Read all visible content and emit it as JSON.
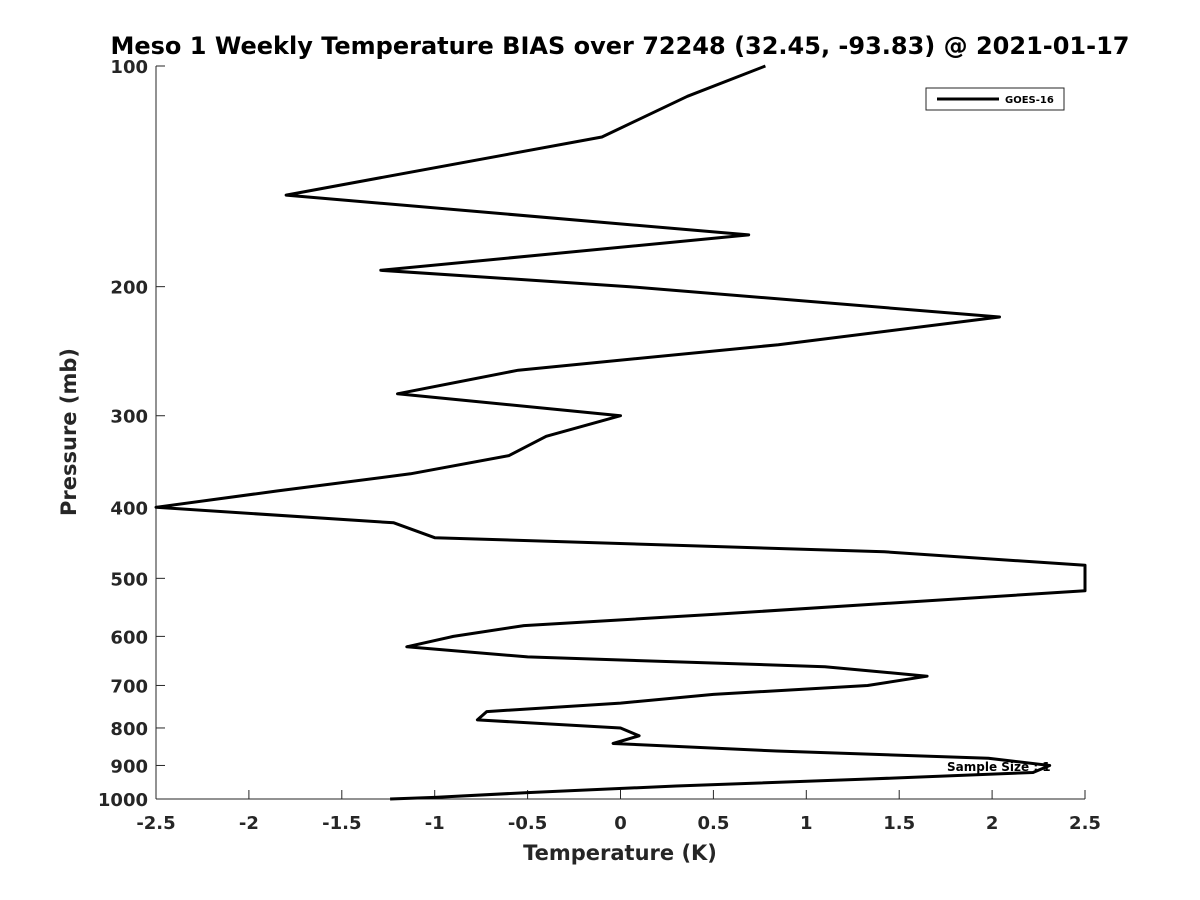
{
  "chart_data": {
    "type": "line",
    "title": "Meso 1 Weekly Temperature BIAS over 72248 (32.45, -93.83) @ 2021-01-17",
    "xlabel": "Temperature (K)",
    "ylabel": "Pressure (mb)",
    "xlim": [
      -2.5,
      2.5
    ],
    "ylim": [
      100,
      1000
    ],
    "y_scale": "log",
    "y_reversed": true,
    "x_ticks": [
      -2.5,
      -2,
      -1.5,
      -1,
      -0.5,
      0,
      0.5,
      1,
      1.5,
      2,
      2.5
    ],
    "x_tick_labels": [
      "-2.5",
      "-2",
      "-1.5",
      "-1",
      "-0.5",
      "0",
      "0.5",
      "1",
      "1.5",
      "2",
      "2.5"
    ],
    "y_ticks": [
      100,
      200,
      300,
      400,
      500,
      600,
      700,
      800,
      900,
      1000
    ],
    "y_tick_labels": [
      "100",
      "200",
      "300",
      "400",
      "500",
      "600",
      "700",
      "800",
      "900",
      "1000"
    ],
    "grid": false,
    "legend": {
      "position": "top-right",
      "entries": [
        "GOES-16"
      ]
    },
    "annotation": "Sample Size : 1",
    "series": [
      {
        "name": "GOES-16",
        "color": "#000000",
        "points": [
          {
            "x": 0.78,
            "p": 100
          },
          {
            "x": 0.36,
            "p": 110
          },
          {
            "x": -0.1,
            "p": 125
          },
          {
            "x": -1.8,
            "p": 150
          },
          {
            "x": 0.69,
            "p": 170
          },
          {
            "x": -1.29,
            "p": 190
          },
          {
            "x": 0.05,
            "p": 200
          },
          {
            "x": 2.04,
            "p": 220
          },
          {
            "x": 0.85,
            "p": 240
          },
          {
            "x": -0.55,
            "p": 260
          },
          {
            "x": -1.2,
            "p": 280
          },
          {
            "x": 0.0,
            "p": 300
          },
          {
            "x": -0.4,
            "p": 320
          },
          {
            "x": -0.6,
            "p": 340
          },
          {
            "x": -1.13,
            "p": 360
          },
          {
            "x": -1.85,
            "p": 380
          },
          {
            "x": -2.5,
            "p": 400
          },
          {
            "x": -1.22,
            "p": 420
          },
          {
            "x": -1.0,
            "p": 440
          },
          {
            "x": 1.42,
            "p": 460
          },
          {
            "x": 2.5,
            "p": 480
          },
          {
            "x": 2.5,
            "p": 520
          },
          {
            "x": 0.5,
            "p": 560
          },
          {
            "x": -0.52,
            "p": 580
          },
          {
            "x": -0.9,
            "p": 600
          },
          {
            "x": -1.15,
            "p": 620
          },
          {
            "x": -0.5,
            "p": 640
          },
          {
            "x": 1.1,
            "p": 660
          },
          {
            "x": 1.65,
            "p": 680
          },
          {
            "x": 1.33,
            "p": 700
          },
          {
            "x": 0.5,
            "p": 720
          },
          {
            "x": 0.0,
            "p": 740
          },
          {
            "x": -0.72,
            "p": 760
          },
          {
            "x": -0.77,
            "p": 780
          },
          {
            "x": 0.0,
            "p": 800
          },
          {
            "x": 0.1,
            "p": 820
          },
          {
            "x": -0.04,
            "p": 840
          },
          {
            "x": 0.84,
            "p": 860
          },
          {
            "x": 1.98,
            "p": 880
          },
          {
            "x": 2.31,
            "p": 900
          },
          {
            "x": 2.22,
            "p": 920
          },
          {
            "x": 1.3,
            "p": 940
          },
          {
            "x": 0.3,
            "p": 960
          },
          {
            "x": -0.5,
            "p": 980
          },
          {
            "x": -1.0,
            "p": 995
          },
          {
            "x": -1.24,
            "p": 1000
          }
        ]
      }
    ]
  }
}
